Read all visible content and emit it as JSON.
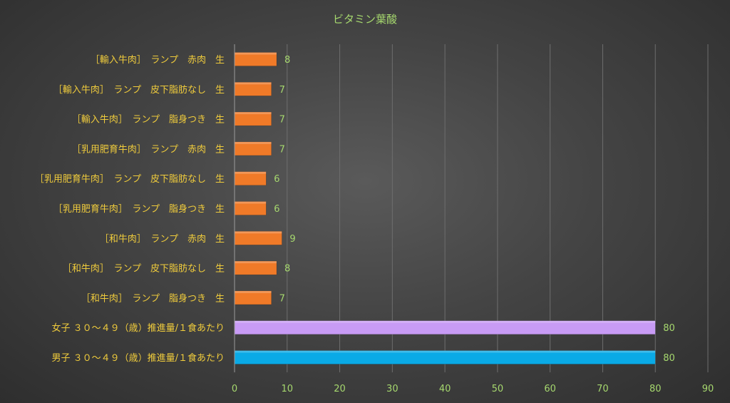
{
  "chart_data": {
    "type": "bar",
    "orientation": "horizontal",
    "title": "ビタミン葉酸",
    "categories": [
      "［輸入牛肉］　ランプ　赤肉　生",
      "［輸入牛肉］　ランプ　皮下脂肪なし　生",
      "［輸入牛肉］　ランプ　脂身つき　生",
      "［乳用肥育牛肉］　ランプ　赤肉　生",
      "［乳用肥育牛肉］　ランプ　皮下脂肪なし　生",
      "［乳用肥育牛肉］　ランプ　脂身つき　生",
      "［和牛肉］　ランプ　赤肉　生",
      "［和牛肉］　ランプ　皮下脂肪なし　生",
      "［和牛肉］　ランプ　脂身つき　生",
      "女子 ３０～４９（歳）推進量/１食あたり",
      "男子 ３０～４９（歳）推進量/１食あたり"
    ],
    "values": [
      8,
      7,
      7,
      7,
      6,
      6,
      9,
      8,
      7,
      80,
      80
    ],
    "value_labels": [
      "8",
      "7",
      "7",
      "7",
      "6",
      "6",
      "9",
      "8",
      "7",
      "80",
      "80"
    ],
    "bar_colors": [
      "#f07a28",
      "#f07a28",
      "#f07a28",
      "#f07a28",
      "#f07a28",
      "#f07a28",
      "#f07a28",
      "#f07a28",
      "#f07a28",
      "#c89bf5",
      "#0aaae6"
    ],
    "xlim": [
      0,
      90
    ],
    "x_ticks": [
      0,
      10,
      20,
      30,
      40,
      50,
      60,
      70,
      80,
      90
    ],
    "x_tick_labels": [
      "0",
      "10",
      "20",
      "30",
      "40",
      "50",
      "60",
      "70",
      "80",
      "90"
    ],
    "xlabel": "",
    "ylabel": "",
    "grid": true,
    "legend": "none"
  }
}
